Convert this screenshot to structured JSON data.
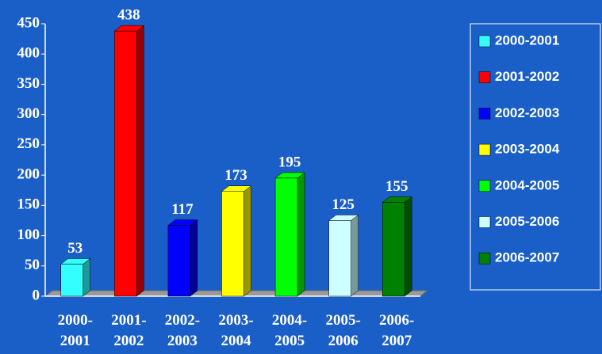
{
  "chart_data": {
    "type": "bar",
    "categories": [
      "2000-2001",
      "2001-2002",
      "2002-2003",
      "2003-2004",
      "2004-2005",
      "2005-2006",
      "2006-2007"
    ],
    "values": [
      53,
      438,
      117,
      173,
      195,
      125,
      155
    ],
    "colors": [
      "#33ffff",
      "#ff0000",
      "#0000ff",
      "#ffff00",
      "#00ff00",
      "#ccffff",
      "#008000"
    ],
    "ylim": [
      0,
      450
    ],
    "yticks": [
      0,
      50,
      100,
      150,
      200,
      250,
      300,
      350,
      400,
      450
    ],
    "grid": false,
    "legend": "right"
  }
}
